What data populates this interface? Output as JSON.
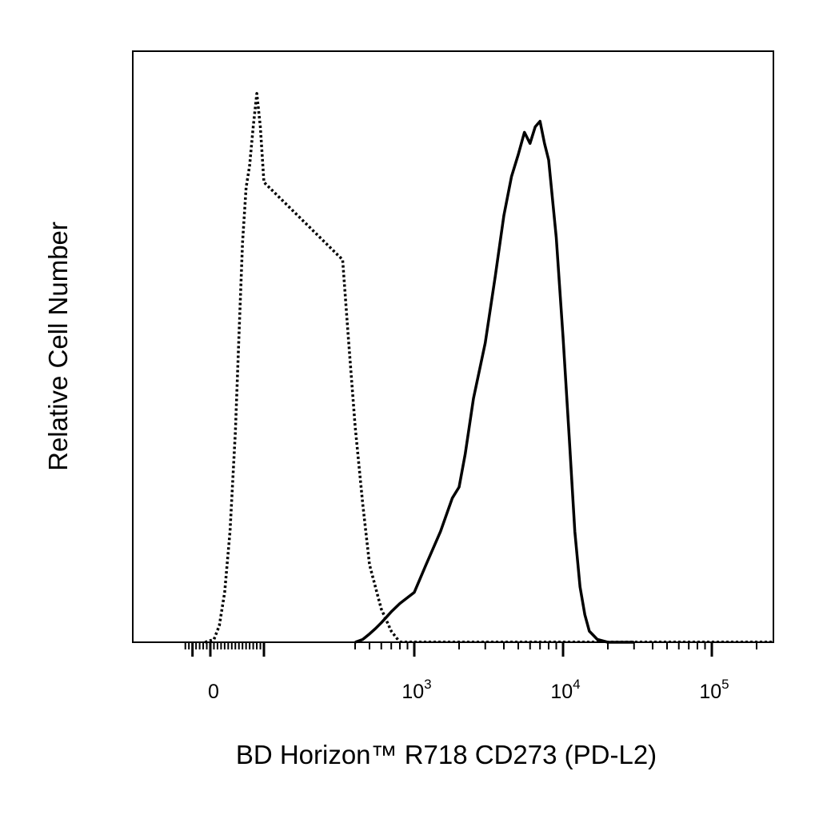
{
  "chart_data": {
    "type": "line",
    "title": "",
    "xlabel": "BD Horizon™ R718 CD273 (PD-L2)",
    "ylabel": "Relative Cell Number",
    "x_scale": "biexponential",
    "xlim": [
      -150,
      250000
    ],
    "ylim": [
      0,
      1
    ],
    "grid": false,
    "legend": "none",
    "x_ticks": [
      {
        "value": 0,
        "base": "0",
        "exp": ""
      },
      {
        "value": 1000,
        "base": "10",
        "exp": "3"
      },
      {
        "value": 10000,
        "base": "10",
        "exp": "4"
      },
      {
        "value": 100000,
        "base": "10",
        "exp": "5"
      }
    ],
    "series": [
      {
        "style": "dotted",
        "color": "#000000",
        "x": [
          -30,
          20,
          50,
          80,
          110,
          140,
          160,
          180,
          200,
          220,
          240,
          260,
          280,
          300,
          330,
          360,
          400,
          450,
          500,
          600,
          700,
          800
        ],
        "y": [
          0,
          0.005,
          0.03,
          0.09,
          0.2,
          0.38,
          0.55,
          0.72,
          0.82,
          0.86,
          0.93,
          0.99,
          0.93,
          0.83,
          0.69,
          0.55,
          0.39,
          0.25,
          0.14,
          0.06,
          0.02,
          0.0
        ]
      },
      {
        "style": "solid",
        "color": "#000000",
        "x": [
          400,
          450,
          500,
          550,
          600,
          700,
          800,
          1000,
          1200,
          1500,
          1800,
          2000,
          2200,
          2500,
          3000,
          3500,
          4000,
          4500,
          5000,
          5500,
          6000,
          6500,
          7000,
          7500,
          8000,
          9000,
          10000,
          11000,
          12000,
          13000,
          14000,
          15000,
          17000,
          20000,
          25000,
          30000
        ],
        "y": [
          0,
          0.005,
          0.015,
          0.025,
          0.035,
          0.055,
          0.07,
          0.09,
          0.14,
          0.2,
          0.26,
          0.28,
          0.34,
          0.44,
          0.54,
          0.66,
          0.77,
          0.84,
          0.88,
          0.92,
          0.9,
          0.93,
          0.94,
          0.9,
          0.87,
          0.73,
          0.55,
          0.37,
          0.2,
          0.1,
          0.05,
          0.02,
          0.005,
          0.0,
          0.0,
          0.0
        ]
      }
    ]
  }
}
